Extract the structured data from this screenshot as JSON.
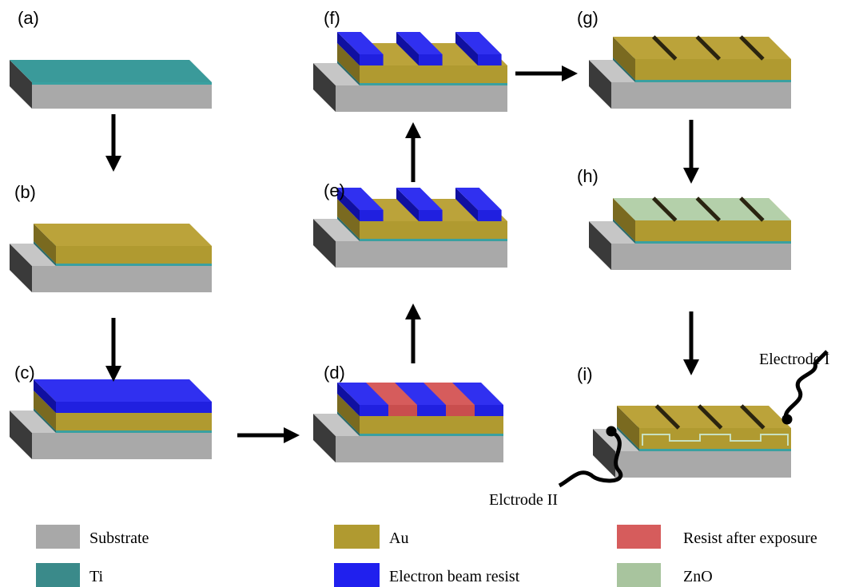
{
  "panels": {
    "labels": [
      "(a)",
      "(b)",
      "(c)",
      "(d)",
      "(e)",
      "(f)",
      "(g)",
      "(h)",
      "(i)"
    ]
  },
  "electrodes": [
    "Electrode I",
    "Elctrode II"
  ],
  "legend": [
    "Substrate",
    "Ti",
    "Au",
    "Electron beam resist",
    "Resist after exposure",
    "ZnO"
  ]
}
